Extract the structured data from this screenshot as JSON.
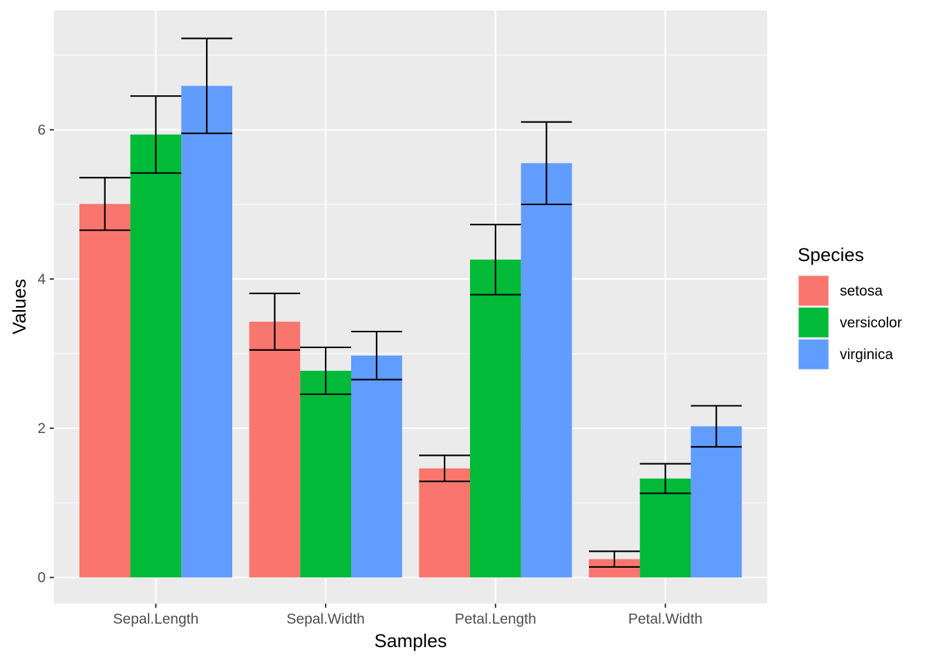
{
  "chart_data": {
    "type": "bar",
    "title": "",
    "xlabel": "Samples",
    "ylabel": "Values",
    "categories": [
      "Sepal.Length",
      "Sepal.Width",
      "Petal.Length",
      "Petal.Width"
    ],
    "ylim": [
      -0.35,
      7.6
    ],
    "y_ticks": [
      0,
      2,
      4,
      6
    ],
    "y_tick_labels": [
      "0",
      "2",
      "4",
      "6"
    ],
    "grid": true,
    "legend": {
      "title": "Species",
      "position": "right"
    },
    "series": [
      {
        "name": "setosa",
        "color": "#F8766D",
        "values": [
          5.006,
          3.428,
          1.462,
          0.246
        ],
        "error_low": [
          4.654,
          3.049,
          1.288,
          0.141
        ],
        "error_high": [
          5.358,
          3.807,
          1.636,
          0.351
        ]
      },
      {
        "name": "versicolor",
        "color": "#00BA38",
        "values": [
          5.936,
          2.77,
          4.26,
          1.326
        ],
        "error_low": [
          5.42,
          2.456,
          3.79,
          1.128
        ],
        "error_high": [
          6.452,
          3.084,
          4.73,
          1.524
        ]
      },
      {
        "name": "virginica",
        "color": "#619CFF",
        "values": [
          6.588,
          2.974,
          5.552,
          2.026
        ],
        "error_low": [
          5.952,
          2.652,
          5.0,
          1.751
        ],
        "error_high": [
          7.224,
          3.296,
          6.104,
          2.301
        ]
      }
    ]
  }
}
